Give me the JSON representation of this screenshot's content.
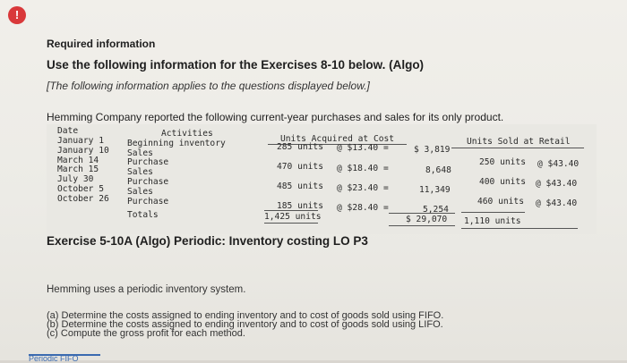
{
  "header": {
    "alert_icon": "!",
    "required_information": "Required information",
    "use_following": "Use the following information for the Exercises 8-10 below. (Algo)",
    "applies_note": "[The following information applies to the questions displayed below.]",
    "reported_sentence": "Hemming Company reported the following current-year purchases and sales for its only product."
  },
  "table": {
    "headers": {
      "date": "Date",
      "activities": "Activities",
      "units_acquired": "Units Acquired at Cost",
      "units_sold": "Units Sold at Retail"
    },
    "dates": [
      "January 1",
      "January 10",
      "March 14",
      "March 15",
      "July 30",
      "October 5",
      "October 26"
    ],
    "activities": [
      "Beginning inventory",
      "Sales",
      "Purchase",
      "Sales",
      "Purchase",
      "Sales",
      "Purchase",
      "Totals"
    ],
    "acquired": [
      {
        "units": "285 units",
        "cost": "@ $13.40 =",
        "total": "$ 3,819"
      },
      {
        "units": "470 units",
        "cost": "@ $18.40 =",
        "total": "8,648"
      },
      {
        "units": "485 units",
        "cost": "@ $23.40 =",
        "total": "11,349"
      },
      {
        "units": "185 units",
        "cost": "@ $28.40 =",
        "total": "5,254"
      }
    ],
    "acquired_totals": {
      "units": "1,425 units",
      "total": "$ 29,070"
    },
    "sold": [
      {
        "units": "250 units",
        "price": "@ $43.40"
      },
      {
        "units": "400 units",
        "price": "@ $43.40"
      },
      {
        "units": "460 units",
        "price": "@ $43.40"
      }
    ],
    "sold_total": "1,110 units"
  },
  "exercise": {
    "title": "Exercise 5-10A (Algo) Periodic: Inventory costing LO P3",
    "intro": "Hemming uses a periodic inventory system.",
    "tasks": [
      "(a) Determine the costs assigned to ending inventory and to cost of goods sold using FIFO.",
      "(b) Determine the costs assigned to ending inventory and to cost of goods sold using LIFO.",
      "(c) Compute the gross profit for each method."
    ]
  },
  "bottom_tab": {
    "label": "Periodic FIFO"
  }
}
